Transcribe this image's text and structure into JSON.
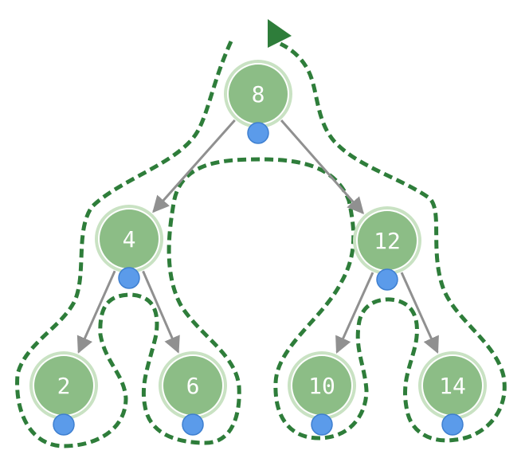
{
  "diagram": {
    "title": "",
    "colors": {
      "node_fill": "#8cbd86",
      "node_ring": "#c9e2c3",
      "node_outer": "#ffffff",
      "edge": "#909090",
      "traversal_path": "#2e7d3a",
      "marker": "#5b9bea",
      "marker_stroke": "#3e7fd0",
      "start_arrow": "#2e7d3a"
    },
    "nodes": [
      {
        "id": "n8",
        "label": "8"
      },
      {
        "id": "n4",
        "label": "4"
      },
      {
        "id": "n12",
        "label": "12"
      },
      {
        "id": "n2",
        "label": "2"
      },
      {
        "id": "n6",
        "label": "6"
      },
      {
        "id": "n10",
        "label": "10"
      },
      {
        "id": "n14",
        "label": "14"
      }
    ],
    "edges": [
      {
        "from": "n8",
        "to": "n4"
      },
      {
        "from": "n8",
        "to": "n12"
      },
      {
        "from": "n4",
        "to": "n2"
      },
      {
        "from": "n4",
        "to": "n6"
      },
      {
        "from": "n12",
        "to": "n10"
      },
      {
        "from": "n12",
        "to": "n14"
      }
    ],
    "traversal": "inorder",
    "marker_position": "bottom"
  }
}
